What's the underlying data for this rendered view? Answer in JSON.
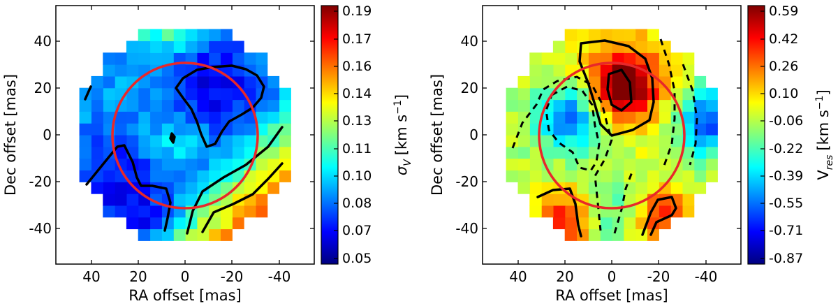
{
  "chart_data": [
    {
      "type": "heatmap",
      "title": "",
      "xlabel": "RA offset [mas]",
      "ylabel": "Dec offset [mas]",
      "xlim": [
        55,
        -55
      ],
      "ylim": [
        -55,
        55
      ],
      "xticks": [
        "40",
        "20",
        "0",
        "-20",
        "-40"
      ],
      "yticks": [
        "40",
        "20",
        "0",
        "-20",
        "-40"
      ],
      "colorbar": {
        "label": "σV [km s⁻¹]",
        "label_symbol": "σ",
        "label_subscript": "V",
        "label_units": "[km s",
        "label_exponent": "−1",
        "ticks": [
          "0.05",
          "0.07",
          "0.08",
          "0.10",
          "0.11",
          "0.13",
          "0.14",
          "0.16",
          "0.17",
          "0.19"
        ],
        "range": [
          0.05,
          0.19
        ],
        "colormap": "jet"
      },
      "circle": {
        "ra_center": 0,
        "dec_center": 0,
        "radius": 31,
        "color": "#e8282a"
      },
      "grid": false
    },
    {
      "type": "heatmap",
      "title": "",
      "xlabel": "RA offset [mas]",
      "ylabel": "Dec offset [mas]",
      "xlim": [
        55,
        -55
      ],
      "ylim": [
        -55,
        55
      ],
      "xticks": [
        "40",
        "20",
        "0",
        "-20",
        "-40"
      ],
      "yticks": [
        "40",
        "20",
        "0",
        "-20",
        "-40"
      ],
      "colorbar": {
        "label": "Vres [km s⁻¹]",
        "label_symbol": "V",
        "label_subscript": "res",
        "label_units": "[km s",
        "label_exponent": "−1",
        "ticks": [
          "0.59",
          "0.42",
          "0.26",
          "0.10",
          "-0.06",
          "-0.22",
          "-0.39",
          "-0.55",
          "-0.71",
          "-0.87"
        ],
        "range": [
          -0.87,
          0.59
        ],
        "colormap": "jet"
      },
      "circle": {
        "ra_center": 0,
        "dec_center": 0,
        "radius": 31,
        "color": "#e8282a"
      },
      "grid": false
    }
  ]
}
